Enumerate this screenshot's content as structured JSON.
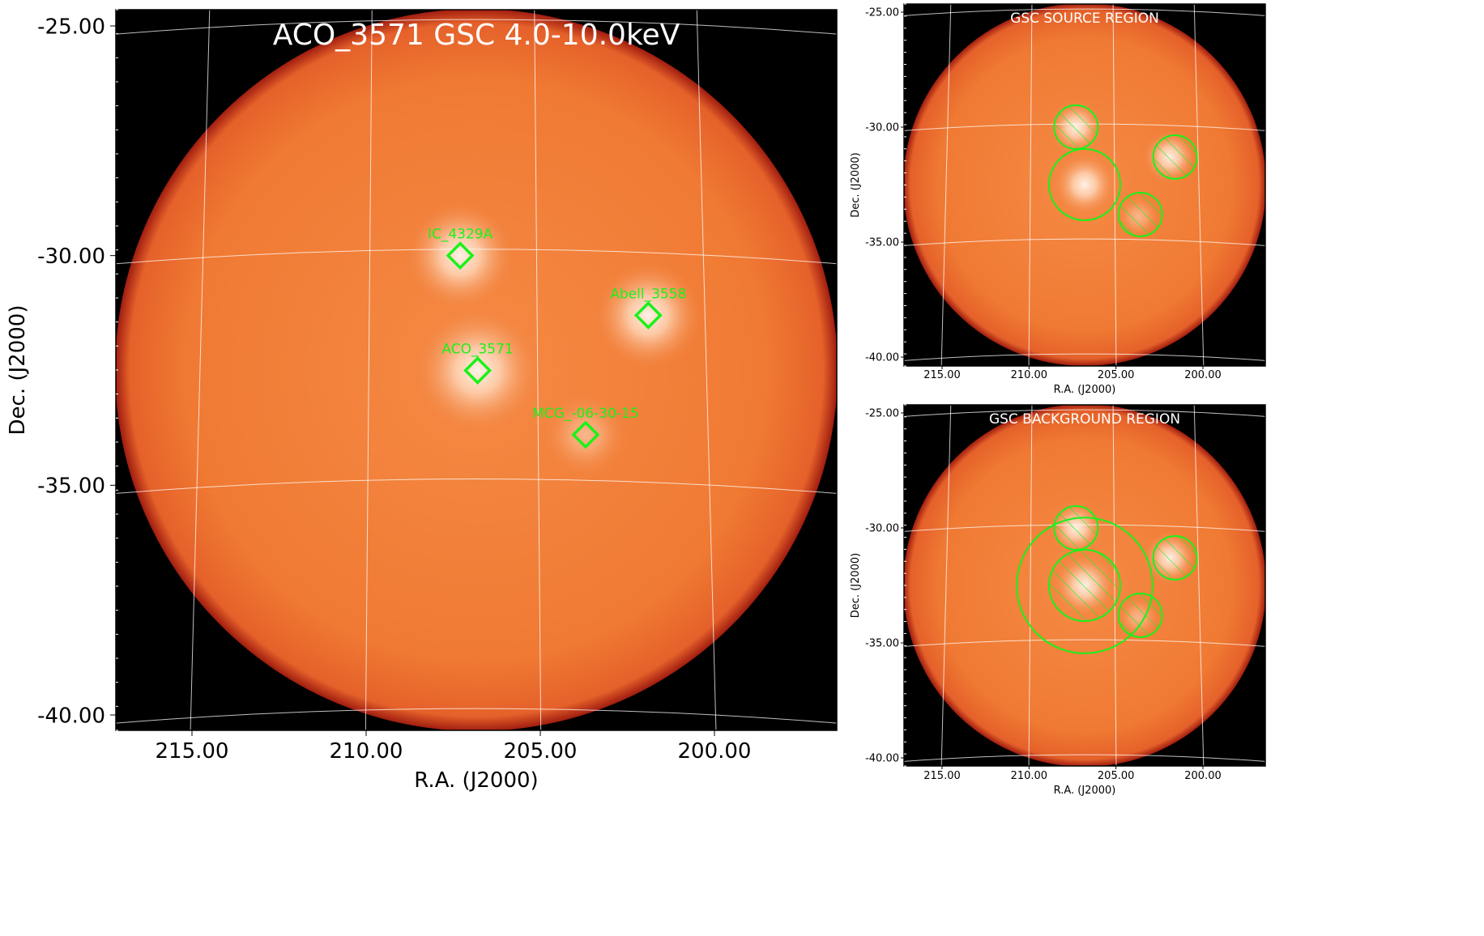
{
  "colors": {
    "background": "#000000",
    "field": "#f07a33",
    "hotspot": "#fff4ea",
    "grid": "#ffffff",
    "marker": "#19f219",
    "title_text": "#ffffff"
  },
  "chart_data": [
    {
      "id": "main",
      "type": "heatmap",
      "title": "ACO_3571 GSC 4.0-10.0keV",
      "xlabel": "R.A. (J2000)",
      "ylabel": "Dec. (J2000)",
      "x_ticks": [
        "215.00",
        "210.00",
        "205.00",
        "200.00"
      ],
      "y_ticks": [
        "-25.00",
        "-30.00",
        "-35.00",
        "-40.00"
      ],
      "xlim": [
        217.4,
        196.8
      ],
      "ylim": [
        -40.3,
        -24.6
      ],
      "grid": true,
      "sources": [
        {
          "name": "IC_4329A",
          "ra": 207.3,
          "dec": -30.0
        },
        {
          "name": "Abell_3558",
          "ra": 201.9,
          "dec": -31.3
        },
        {
          "name": "ACO_3571",
          "ra": 206.8,
          "dec": -32.5
        },
        {
          "name": "MCG_-06-30-15",
          "ra": 203.7,
          "dec": -33.9
        }
      ]
    },
    {
      "id": "source",
      "type": "heatmap",
      "title": "GSC SOURCE REGION",
      "xlabel": "R.A. (J2000)",
      "ylabel": "Dec. (J2000)",
      "x_ticks": [
        "215.00",
        "210.00",
        "205.00",
        "200.00"
      ],
      "y_ticks": [
        "-25.00",
        "-30.00",
        "-35.00",
        "-40.00"
      ],
      "xlim": [
        217.4,
        196.8
      ],
      "ylim": [
        -40.3,
        -24.6
      ],
      "grid": true,
      "regions": [
        {
          "kind": "hatched-circle",
          "ra": 207.3,
          "dec": -30.0,
          "radius_deg": 0.95
        },
        {
          "kind": "hatched-circle",
          "ra": 201.6,
          "dec": -31.3,
          "radius_deg": 0.95
        },
        {
          "kind": "hatched-circle",
          "ra": 203.6,
          "dec": -33.8,
          "radius_deg": 0.95
        },
        {
          "kind": "circle",
          "ra": 206.8,
          "dec": -32.5,
          "radius_deg": 1.55
        }
      ]
    },
    {
      "id": "background",
      "type": "heatmap",
      "title": "GSC BACKGROUND REGION",
      "xlabel": "R.A. (J2000)",
      "ylabel": "Dec. (J2000)",
      "x_ticks": [
        "215.00",
        "210.00",
        "205.00",
        "200.00"
      ],
      "y_ticks": [
        "-25.00",
        "-30.00",
        "-35.00",
        "-40.00"
      ],
      "xlim": [
        217.4,
        196.8
      ],
      "ylim": [
        -40.3,
        -24.6
      ],
      "grid": true,
      "regions": [
        {
          "kind": "hatched-circle",
          "ra": 207.3,
          "dec": -30.0,
          "radius_deg": 0.95
        },
        {
          "kind": "hatched-circle",
          "ra": 201.6,
          "dec": -31.3,
          "radius_deg": 0.95
        },
        {
          "kind": "hatched-circle",
          "ra": 203.6,
          "dec": -33.8,
          "radius_deg": 0.95
        },
        {
          "kind": "hatched-circle",
          "ra": 206.8,
          "dec": -32.5,
          "radius_deg": 1.55
        },
        {
          "kind": "circle",
          "ra": 206.8,
          "dec": -32.5,
          "radius_deg": 2.95
        }
      ]
    }
  ]
}
